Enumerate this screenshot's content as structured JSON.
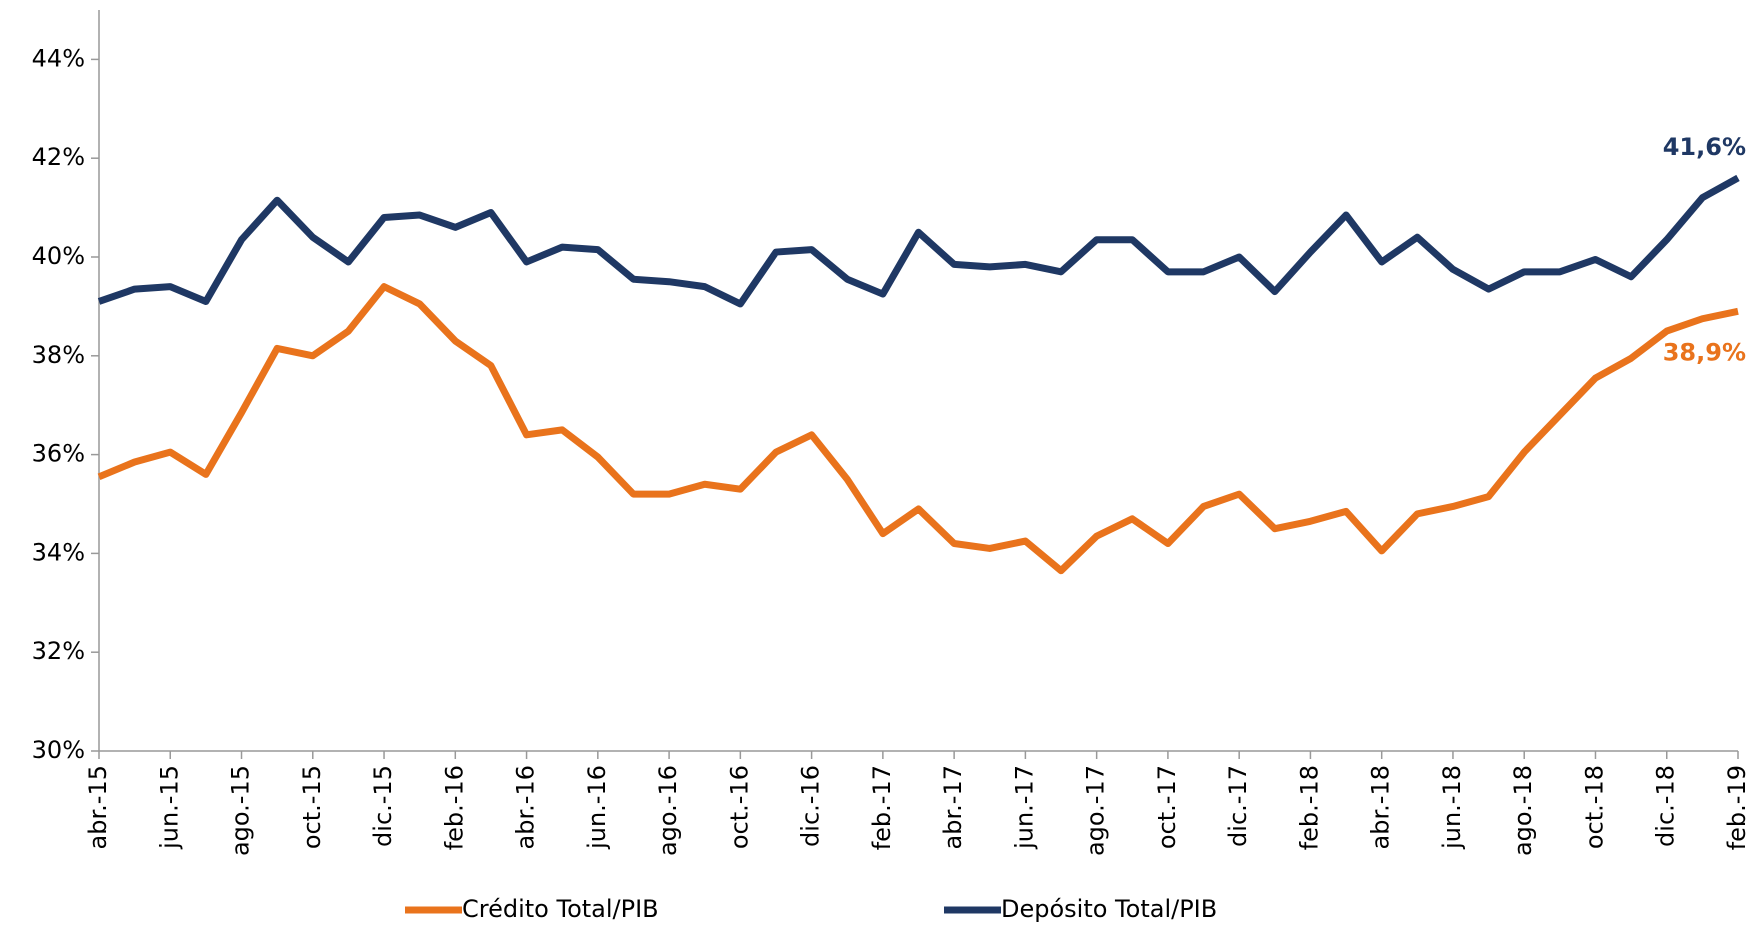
{
  "chart_data": {
    "type": "line",
    "categories": [
      "abr.-15",
      null,
      "jun.-15",
      null,
      "ago.-15",
      null,
      "oct.-15",
      null,
      "dic.-15",
      null,
      "feb.-16",
      null,
      "abr.-16",
      null,
      "jun.-16",
      null,
      "ago.-16",
      null,
      "oct.-16",
      null,
      "dic.-16",
      null,
      "feb.-17",
      null,
      "abr.-17",
      null,
      "jun.-17",
      null,
      "ago.-17",
      null,
      "oct.-17",
      null,
      "dic.-17",
      null,
      "feb.-18",
      null,
      "abr.-18",
      null,
      "jun.-18",
      null,
      "ago.-18",
      null,
      "oct.-18",
      null,
      "dic.-18",
      null,
      "feb.-19"
    ],
    "series": [
      {
        "name": "Crédito Total/PIB",
        "color": "#e9731c",
        "values": [
          35.55,
          35.85,
          36.05,
          35.6,
          36.85,
          38.15,
          38.0,
          38.5,
          39.4,
          39.05,
          38.3,
          37.8,
          36.4,
          36.5,
          35.95,
          35.2,
          35.2,
          35.4,
          35.3,
          36.05,
          36.4,
          35.5,
          34.4,
          34.9,
          34.2,
          34.1,
          34.25,
          33.65,
          34.35,
          34.7,
          34.2,
          34.95,
          35.2,
          34.5,
          34.65,
          34.85,
          34.05,
          34.8,
          34.95,
          35.15,
          36.05,
          36.8,
          37.55,
          37.95,
          38.5,
          38.75,
          38.9
        ],
        "value_labels": [
          null,
          null,
          null,
          null,
          null,
          null,
          null,
          null,
          null,
          null,
          null,
          null,
          null,
          null,
          null,
          null,
          null,
          null,
          null,
          null,
          null,
          null,
          null,
          null,
          null,
          null,
          null,
          null,
          null,
          null,
          null,
          null,
          null,
          null,
          null,
          null,
          null,
          null,
          null,
          null,
          null,
          null,
          null,
          null,
          null,
          null,
          "38,9%"
        ]
      },
      {
        "name": "Depósito Total/PIB",
        "color": "#1f3864",
        "values": [
          39.1,
          39.35,
          39.4,
          39.1,
          40.35,
          41.15,
          40.4,
          39.9,
          40.8,
          40.85,
          40.6,
          40.9,
          39.9,
          40.2,
          40.15,
          39.55,
          39.5,
          39.4,
          39.05,
          40.1,
          40.15,
          39.55,
          39.25,
          40.5,
          39.85,
          39.8,
          39.85,
          39.7,
          40.35,
          40.35,
          39.7,
          39.7,
          40.0,
          39.3,
          40.1,
          40.85,
          39.9,
          40.4,
          39.75,
          39.35,
          39.7,
          39.7,
          39.95,
          39.6,
          40.35,
          41.2,
          41.6
        ],
        "value_labels": [
          null,
          null,
          null,
          null,
          null,
          null,
          null,
          null,
          null,
          null,
          null,
          null,
          null,
          null,
          null,
          null,
          null,
          null,
          null,
          null,
          null,
          null,
          null,
          null,
          null,
          null,
          null,
          null,
          null,
          null,
          null,
          null,
          null,
          null,
          null,
          null,
          null,
          null,
          null,
          null,
          null,
          null,
          null,
          null,
          null,
          null,
          "41,6%"
        ]
      }
    ],
    "ylim": [
      30,
      45
    ],
    "yticks": [
      {
        "value": 30,
        "label": "30%"
      },
      {
        "value": 32,
        "label": "32%"
      },
      {
        "value": 34,
        "label": "34%"
      },
      {
        "value": 36,
        "label": "36%"
      },
      {
        "value": 38,
        "label": "38%"
      },
      {
        "value": 40,
        "label": "40%"
      },
      {
        "value": 42,
        "label": "42%"
      },
      {
        "value": 44,
        "label": "44%"
      }
    ],
    "grid": false,
    "legend": "bottom"
  }
}
